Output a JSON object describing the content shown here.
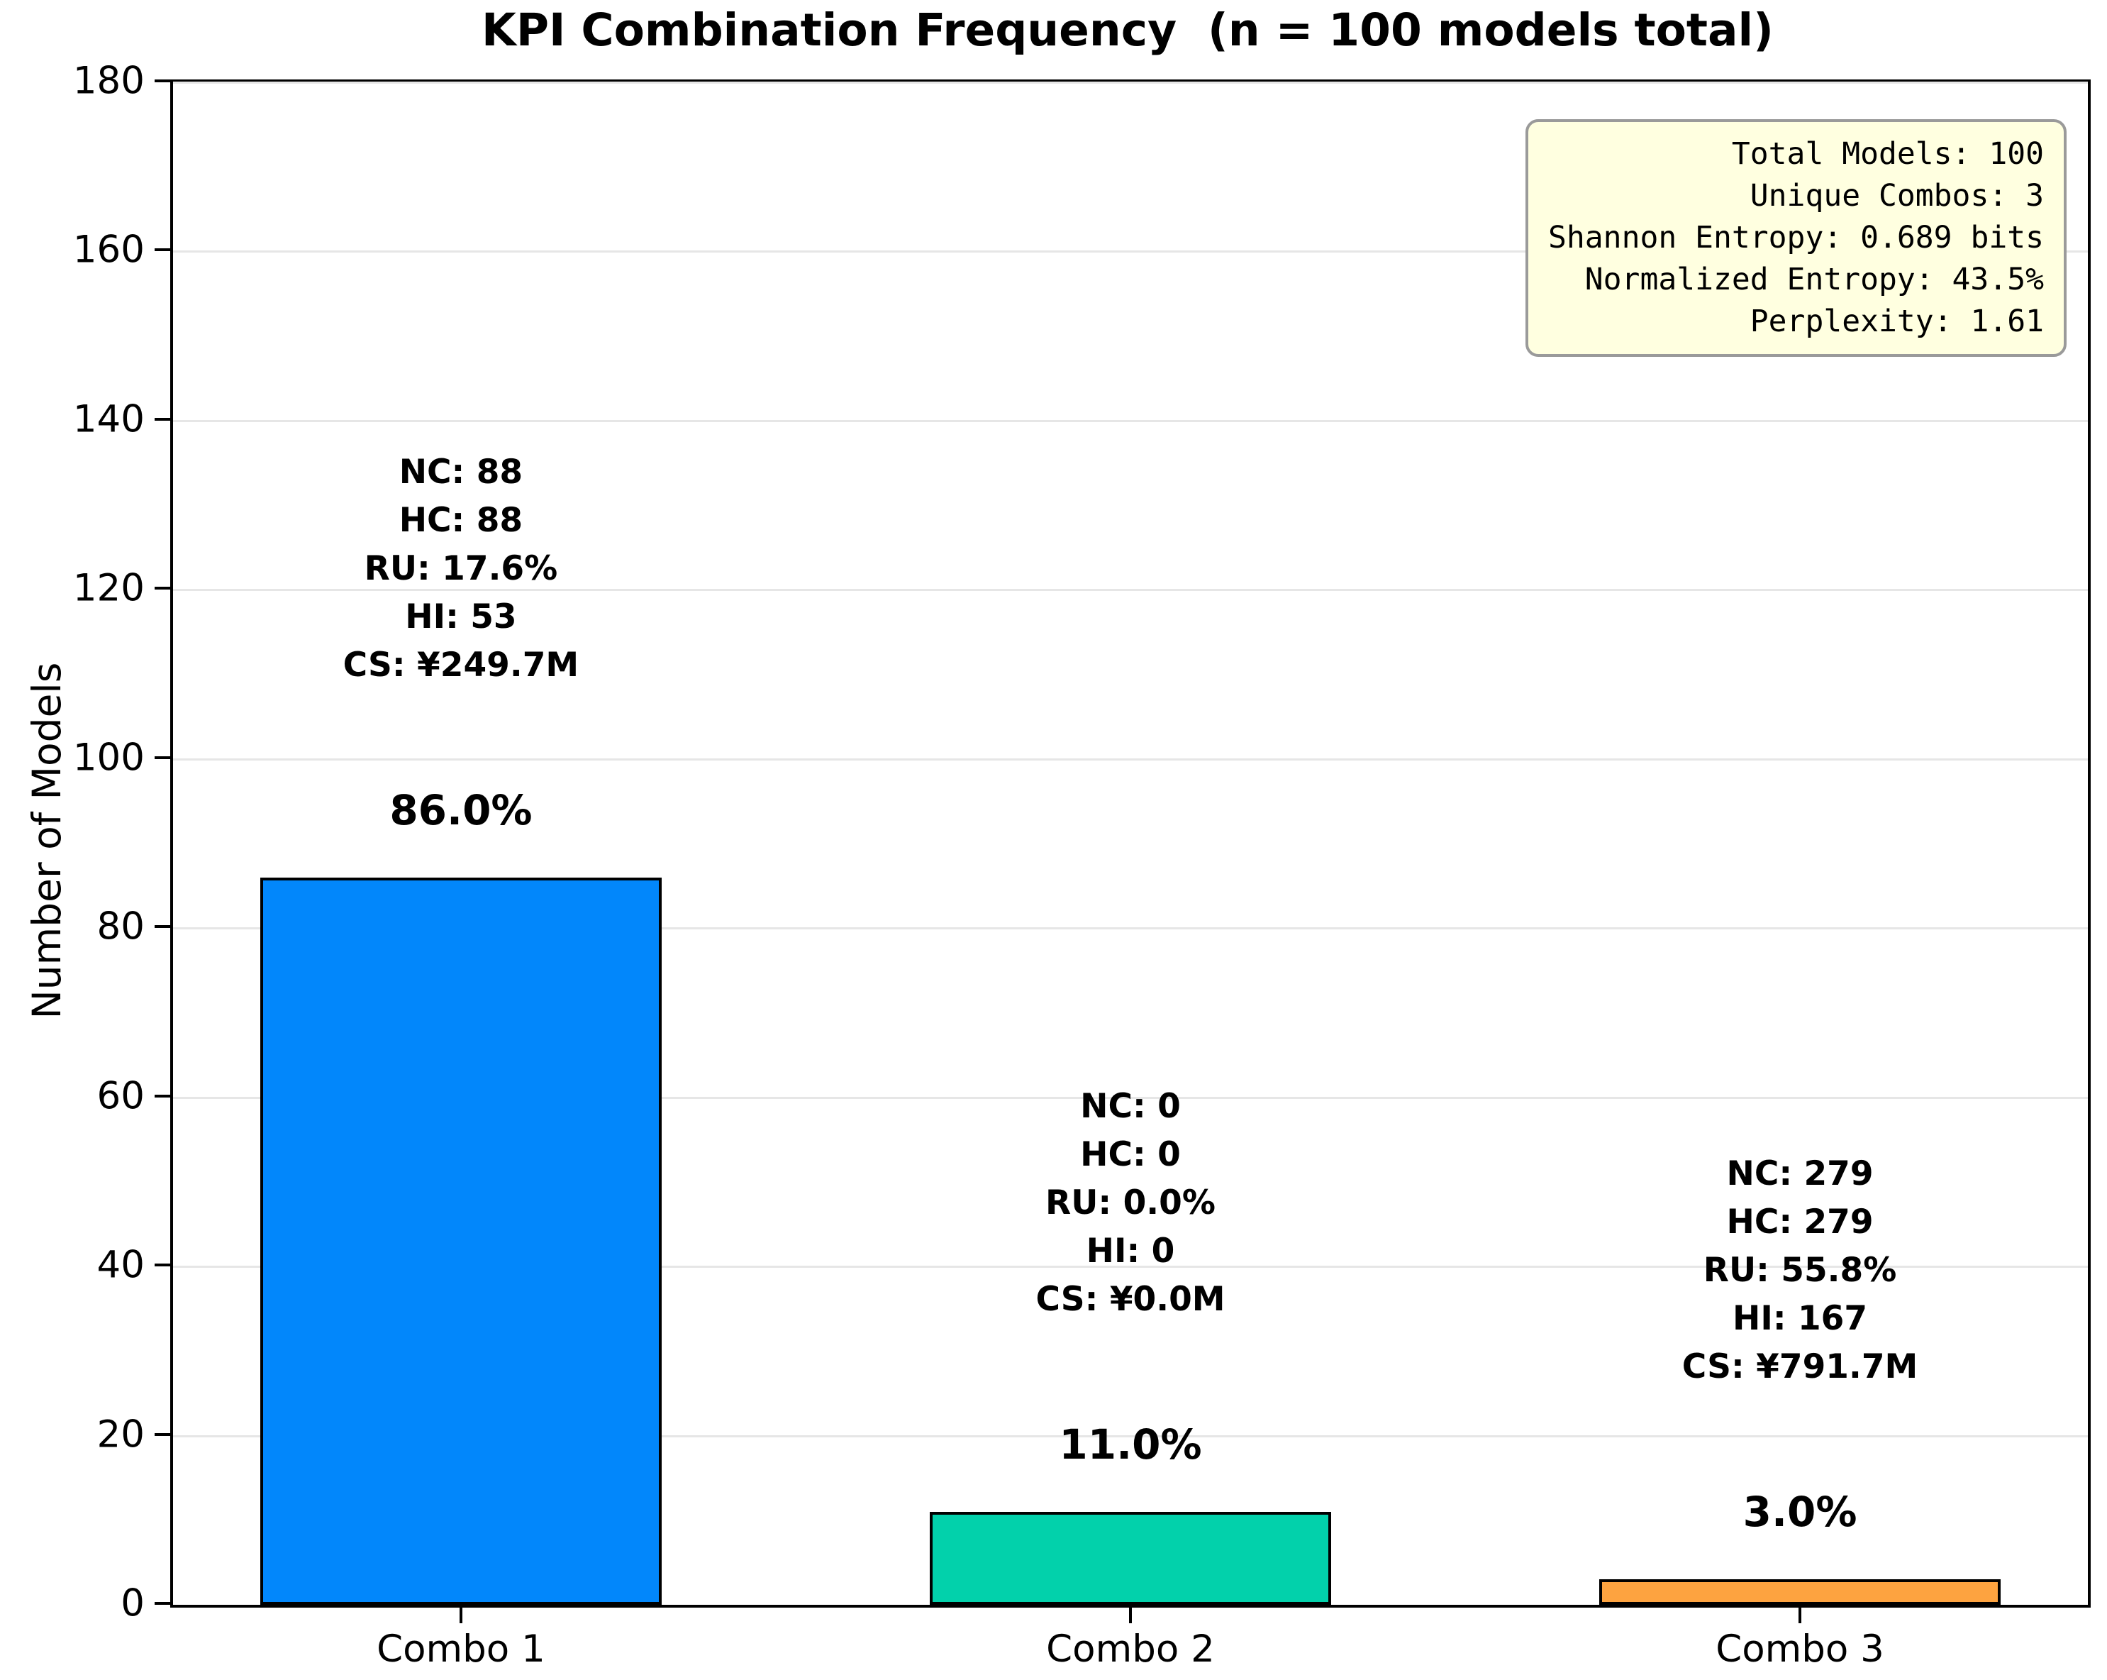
{
  "chart_data": {
    "type": "bar",
    "title": "KPI Combination Frequency  (n = 100 models total)",
    "ylabel": "Number of Models",
    "xlabel": "",
    "categories": [
      "Combo 1",
      "Combo 2",
      "Combo 3"
    ],
    "values": [
      86,
      11,
      3
    ],
    "percent_labels": [
      "86.0%",
      "11.0%",
      "3.0%"
    ],
    "bar_annotations": [
      [
        "NC: 88",
        "HC: 88",
        "RU: 17.6%",
        "HI: 53",
        "CS: ¥249.7M"
      ],
      [
        "NC: 0",
        "HC: 0",
        "RU: 0.0%",
        "HI: 0",
        "CS: ¥0.0M"
      ],
      [
        "NC: 279",
        "HC: 279",
        "RU: 55.8%",
        "HI: 167",
        "CS: ¥791.7M"
      ]
    ],
    "bar_colors": [
      "#0287FB",
      "#02D1AB",
      "#FDA340"
    ],
    "bar_edge_color": "#000000",
    "ylim": [
      0,
      180
    ],
    "yticks": [
      0,
      20,
      40,
      60,
      80,
      100,
      120,
      140,
      160,
      180
    ],
    "grid": "horizontal",
    "legend": "none",
    "stats_box": {
      "lines": [
        "Total Models: 100",
        "Unique Combos: 3",
        "Shannon Entropy: 0.689 bits",
        "Normalized Entropy: 43.5%",
        "Perplexity: 1.61"
      ],
      "background": "#FFFFE0",
      "border_color": "#9A9A9A"
    }
  }
}
